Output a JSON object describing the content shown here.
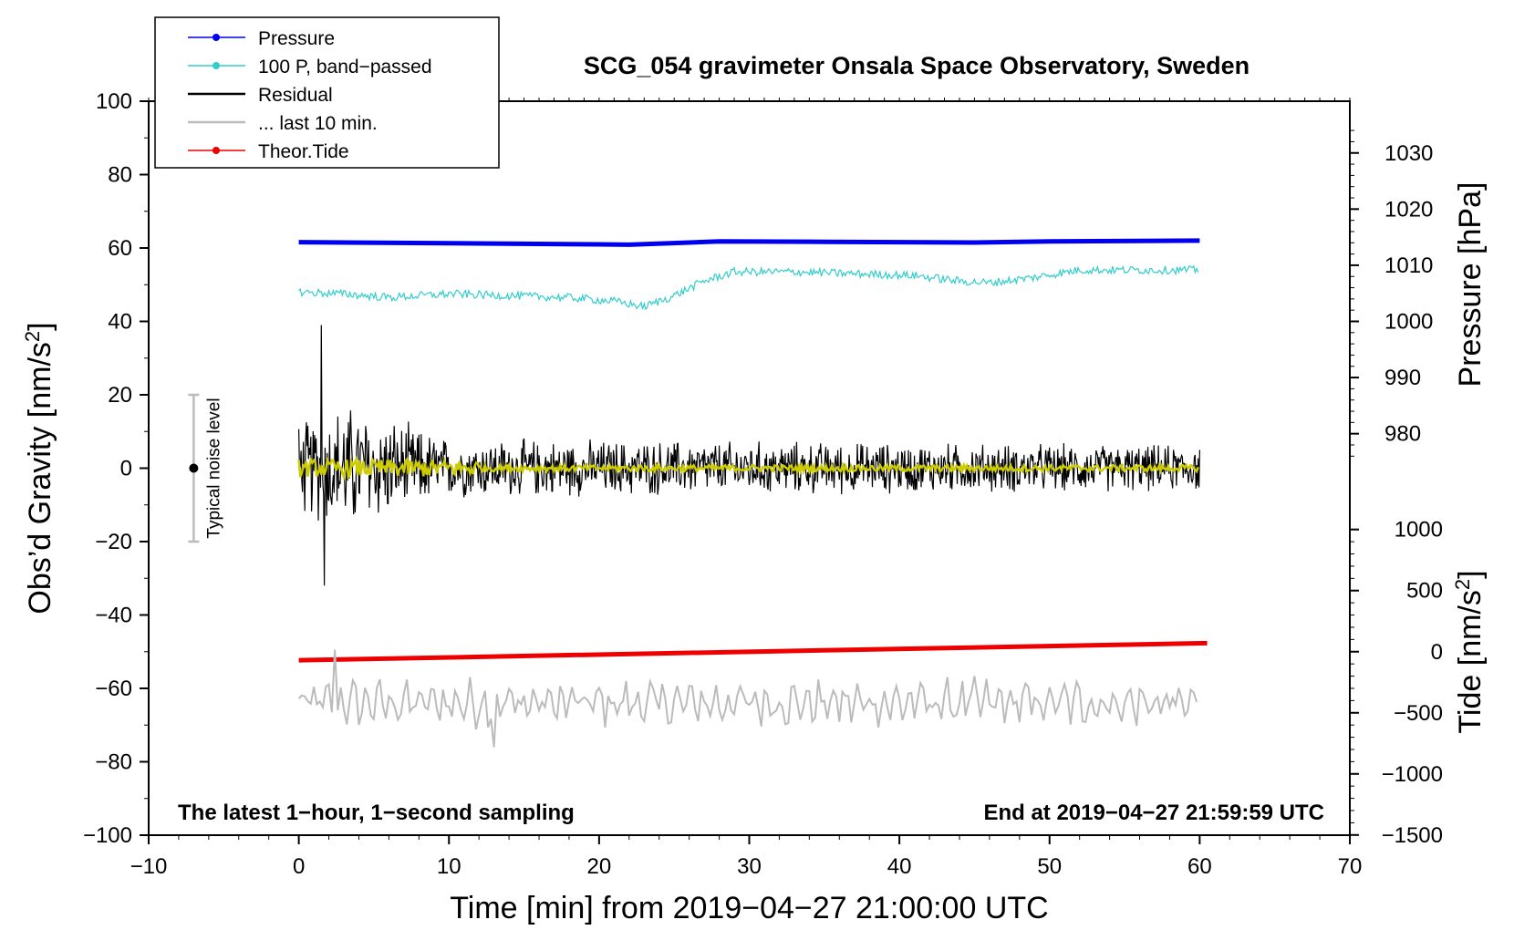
{
  "chart_data": {
    "type": "line",
    "title": "SCG_054 gravimeter Onsala Space Observatory, Sweden",
    "xlabel": "Time [min] from 2019−04−27 21:00:00 UTC",
    "ylabel_left": "Obs’d Gravity [nm/s²]",
    "ylabel_left_main": "Obs’d Gravity [nm/s",
    "ylabel_left_sup": "2",
    "ylabel_left_end": "]",
    "ylabel_right_pressure": "Pressure [hPa]",
    "ylabel_right_tide": "Tide [nm/s²]",
    "ylabel_right_tide_main": "Tide [nm/s",
    "ylabel_right_tide_sup": "2",
    "ylabel_right_tide_end": "]",
    "xlim": [
      -10,
      70
    ],
    "ylim": [
      -100,
      100
    ],
    "xticks": [
      -10,
      0,
      10,
      20,
      30,
      40,
      50,
      60,
      70
    ],
    "xtick_labels": [
      "−10",
      "0",
      "10",
      "20",
      "30",
      "40",
      "50",
      "60",
      "70"
    ],
    "yticks": [
      -100,
      -80,
      -60,
      -40,
      -20,
      0,
      20,
      40,
      60,
      80,
      100
    ],
    "ytick_labels": [
      "−100",
      "−80",
      "−60",
      "−40",
      "−20",
      "0",
      "20",
      "40",
      "60",
      "80",
      "100"
    ],
    "pressure_axis": {
      "ticks": [
        980,
        990,
        1000,
        1010,
        1020,
        1030
      ],
      "tick_labels": [
        "980",
        "990",
        "1000",
        "1010",
        "1020",
        "1030"
      ],
      "gravity_at_1000": 40,
      "gravity_per_hpa": 1.53
    },
    "tide_axis": {
      "ticks": [
        -1500,
        -1000,
        -500,
        0,
        500,
        1000
      ],
      "tick_labels": [
        "−1500",
        "−1000",
        "−500",
        "0",
        "500",
        "1000"
      ],
      "gravity_at_0": -50,
      "gravity_per_unit": 0.0333
    },
    "legend": [
      {
        "label": "Pressure",
        "color": "#0000ee",
        "marker": true
      },
      {
        "label": "100 P, band−passed",
        "color": "#33cccc",
        "marker": true
      },
      {
        "label": "Residual",
        "color": "#000000",
        "marker": false
      },
      {
        "label": "... last 10 min.",
        "color": "#bbbbbb",
        "marker": false
      },
      {
        "label": "Theor.Tide",
        "color": "#ee0000",
        "marker": true
      }
    ],
    "series": [
      {
        "name": "Pressure",
        "color": "#0000ee",
        "x": [
          0,
          10,
          20,
          22,
          28,
          35,
          45,
          50,
          60
        ],
        "y": [
          61.6,
          61.3,
          61.0,
          60.9,
          61.8,
          61.7,
          61.5,
          61.8,
          62.0
        ]
      },
      {
        "name": "100 P, band-passed",
        "color": "#33cccc",
        "x": [
          0,
          3,
          6,
          10,
          14,
          18,
          21,
          23,
          25,
          27,
          29,
          33,
          37,
          41,
          44,
          46,
          49,
          52,
          56,
          60
        ],
        "y": [
          48,
          47.5,
          46.5,
          47.5,
          47,
          46.5,
          45.5,
          44,
          47,
          51,
          53.5,
          53.5,
          53,
          52.5,
          51,
          50.5,
          52,
          54,
          54,
          54
        ]
      },
      {
        "name": "Residual",
        "color": "#000000",
        "x": [
          0,
          3,
          10,
          60
        ],
        "amplitude": [
          14,
          20,
          9,
          7
        ],
        "extremes": {
          "max": 39,
          "min": -32
        }
      },
      {
        "name": "Residual smoothed",
        "color": "#cccc00",
        "amplitude": 1.5
      },
      {
        "name": "Theor.Tide",
        "color": "#ee0000",
        "x": [
          0,
          60.5
        ],
        "y_tide": [
          -70,
          70
        ]
      },
      {
        "name": "... last 10 min.",
        "color": "#bbbbbb",
        "center": -64,
        "amplitude": 6,
        "extremes": {
          "max": -49.5,
          "min": -76
        }
      }
    ],
    "noise_bar": {
      "label": "Typical noise level",
      "x": -7,
      "y_center": 0,
      "y_low": -20,
      "y_high": 20
    },
    "annotations": {
      "left": "The latest 1−hour, 1−second sampling",
      "right": "End at 2019−04−27 21:59:59 UTC"
    }
  }
}
